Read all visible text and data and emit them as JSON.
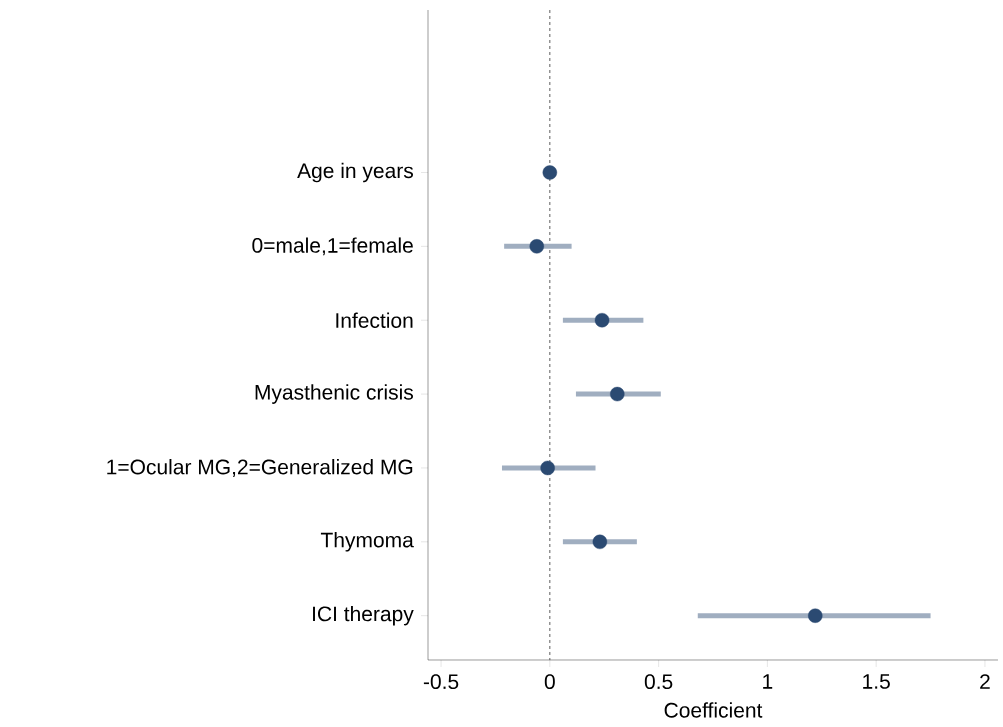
{
  "chart_data": {
    "type": "scatter",
    "orientation": "horizontal",
    "xlabel": "Coefficient",
    "categories": [
      "Age in years",
      "0=male,1=female",
      "Infection",
      "Myasthenic crisis",
      "1=Ocular MG,2=Generalized MG",
      "Thymoma",
      "ICI therapy"
    ],
    "values": [
      0.0,
      -0.06,
      0.24,
      0.31,
      -0.01,
      0.23,
      1.22
    ],
    "errors": [
      [
        -0.01,
        0.01
      ],
      [
        -0.21,
        0.1
      ],
      [
        0.06,
        0.43
      ],
      [
        0.12,
        0.51
      ],
      [
        -0.22,
        0.21
      ],
      [
        0.06,
        0.4
      ],
      [
        0.68,
        1.75
      ]
    ],
    "color": "#2b4a72",
    "marker": "circle",
    "xlim": [
      -0.56,
      2.06
    ],
    "xticks": [
      -0.5,
      0,
      0.5,
      1,
      1.5,
      2
    ],
    "ref_lines": [
      {
        "axis": "x",
        "value": 0,
        "line_style": "dashed",
        "color": "#333333"
      }
    ],
    "grid": false
  }
}
